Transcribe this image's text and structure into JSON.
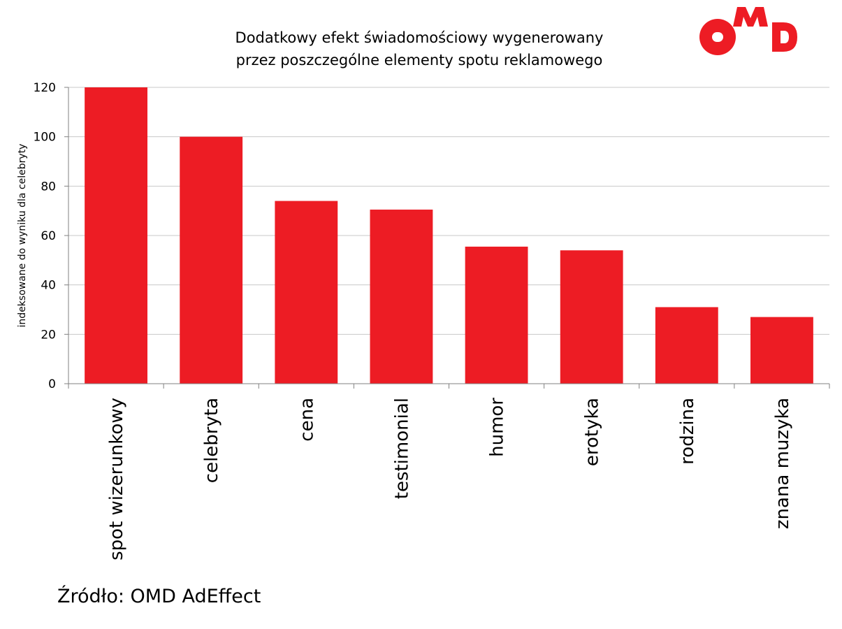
{
  "logo": {
    "text": "OMD",
    "color": "#ED1C24",
    "icon": "omd-logo"
  },
  "source": "Źródło: OMD AdEffect",
  "chart_data": {
    "type": "bar",
    "title_lines": [
      "Dodatkowy efekt świadomościowy wygenerowany",
      "przez poszczególne elementy spotu reklamowego"
    ],
    "categories": [
      "spot wizerunkowy",
      "celebryta",
      "cena",
      "testimonial",
      "humor",
      "erotyka",
      "rodzina",
      "znana muzyka"
    ],
    "values": [
      120,
      100,
      74,
      70.5,
      55.5,
      54,
      31,
      27
    ],
    "xlabel": "",
    "ylabel": "indeksowane do wyniku dla celebryty",
    "ylim": [
      0,
      120
    ],
    "yticks": [
      0,
      20,
      40,
      60,
      80,
      100,
      120
    ],
    "grid": true,
    "bar_color": "#ED1C24"
  }
}
